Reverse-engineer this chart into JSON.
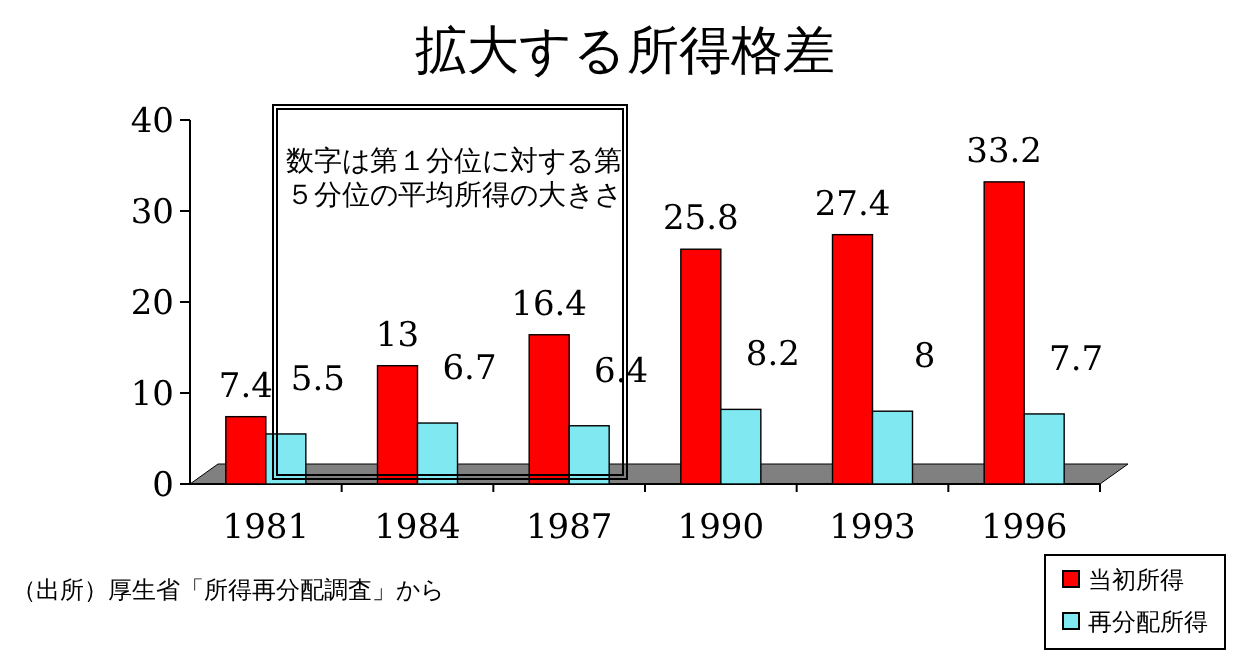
{
  "chart_data": {
    "type": "bar",
    "title": "拡大する所得格差",
    "categories": [
      "1981",
      "1984",
      "1987",
      "1990",
      "1993",
      "1996"
    ],
    "series": [
      {
        "name": "当初所得",
        "color": "#ff0000",
        "values": [
          7.4,
          13,
          16.4,
          25.8,
          27.4,
          33.2
        ]
      },
      {
        "name": "再分配所得",
        "color": "#7fe8f0",
        "values": [
          5.5,
          6.7,
          6.4,
          8.2,
          8,
          7.7
        ]
      }
    ],
    "ylim": [
      0,
      40
    ],
    "yticks": [
      0,
      10,
      20,
      30,
      40
    ],
    "data_labels": true,
    "legend": "bottom right",
    "annotations": [
      "数字は第１分位に対する第５分位の平均所得の大きさ",
      "（出所）厚生省「所得再分配調査」から"
    ]
  }
}
